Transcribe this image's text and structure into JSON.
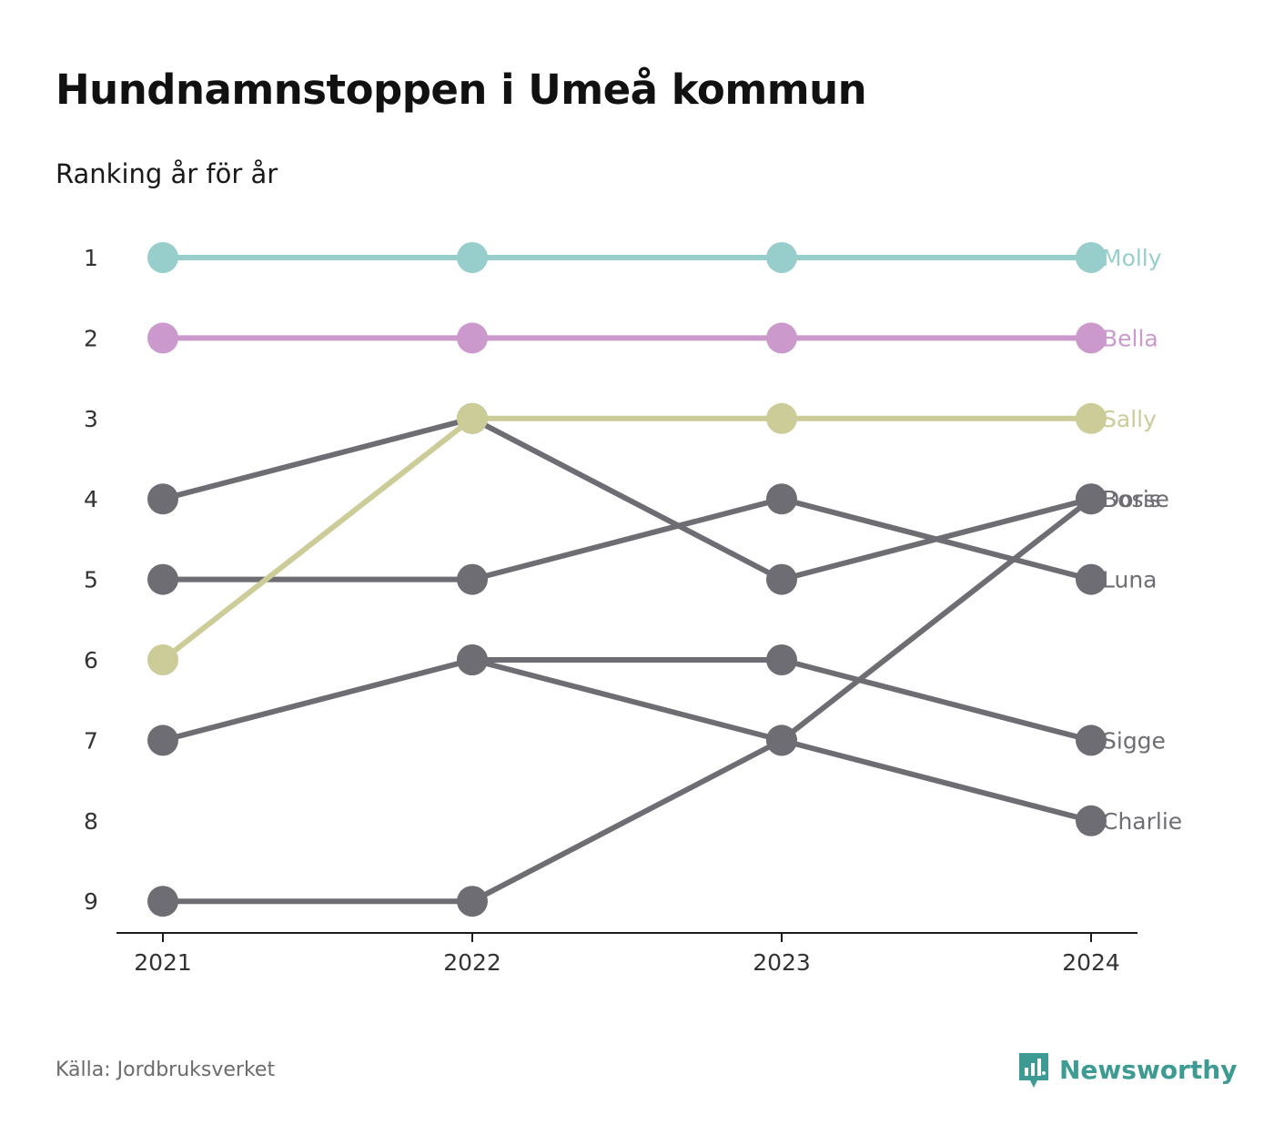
{
  "header": {
    "title": "Hundnamnstoppen i Umeå kommun",
    "subtitle": "Ranking år för år"
  },
  "footer": {
    "source": "Källa: Jordbruksverket",
    "brand": "Newsworthy",
    "brand_icon": "newsworthy-logo-icon"
  },
  "colors": {
    "highlight_1": "#97cecc",
    "highlight_2": "#cc99cc",
    "highlight_3": "#cccc99",
    "other": "#6e6d74",
    "axis": "#1a1a1a",
    "brand": "#3d9b94"
  },
  "chart_data": {
    "type": "line",
    "subtype": "bump",
    "x": [
      "2021",
      "2022",
      "2023",
      "2024"
    ],
    "y_ticks": [
      1,
      2,
      3,
      4,
      5,
      6,
      7,
      8,
      9
    ],
    "y_reversed": true,
    "grid": false,
    "series": [
      {
        "name": "Molly",
        "values": [
          1,
          1,
          1,
          1
        ],
        "color": "#97cecc"
      },
      {
        "name": "Bella",
        "values": [
          2,
          2,
          2,
          2
        ],
        "color": "#cc99cc"
      },
      {
        "name": "Sally",
        "values": [
          6,
          3,
          3,
          3
        ],
        "color": "#cccc99"
      },
      {
        "name": "Bosse",
        "values": [
          9,
          9,
          7,
          4
        ],
        "color": "#6e6d74"
      },
      {
        "name": "Doris",
        "values": [
          4,
          3,
          5,
          4
        ],
        "color": "#6e6d74"
      },
      {
        "name": "Luna",
        "values": [
          5,
          5,
          4,
          5
        ],
        "color": "#6e6d74"
      },
      {
        "name": "Sigge",
        "values": [
          7,
          6,
          6,
          7
        ],
        "color": "#6e6d74"
      },
      {
        "name": "Charlie",
        "values": [
          null,
          6,
          7,
          8
        ],
        "color": "#6e6d74"
      }
    ],
    "end_labels": [
      "Molly",
      "Bella",
      "Sally",
      "Bosse",
      "Doris",
      "Luna",
      "Sigge",
      "Charlie"
    ]
  }
}
